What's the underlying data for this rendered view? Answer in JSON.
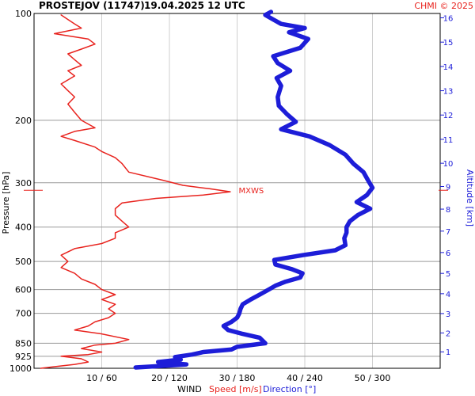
{
  "header": {
    "station": "PROSTEJOV (11747)",
    "datetime": "19.04.2025 12 UTC",
    "copyright": "CHMI © 2025"
  },
  "chart_data": {
    "type": "line",
    "title": "PROSTEJOV (11747)    19.04.2025 12 UTC",
    "ylabel": "Pressure [hPa]",
    "y2label": "Altitude [km]",
    "xlabel": "WIND",
    "xlabel_speed": "Speed [m/s]",
    "xlabel_direction": "Direction [°]",
    "y_scale": "log",
    "ylim": [
      1000,
      100
    ],
    "y_ticks": [
      100,
      200,
      300,
      400,
      500,
      600,
      700,
      850,
      925,
      1000
    ],
    "x_ticks": [
      "10 / 60",
      "20 / 120",
      "30 / 180",
      "40 / 240",
      "50 / 300"
    ],
    "speed_range": [
      0,
      60
    ],
    "direction_range": [
      0,
      360
    ],
    "altitude_ticks": [
      1,
      2,
      3,
      4,
      5,
      6,
      7,
      8,
      9,
      10,
      11,
      12,
      13,
      14,
      15,
      16
    ],
    "max_wind_label": "MXWS",
    "max_wind": {
      "pressure": 315,
      "speed": 30
    },
    "colors": {
      "speed": "#e8231e",
      "direction": "#1d1dd8",
      "grid": "#9a9a9a"
    },
    "series": [
      {
        "name": "Speed [m/s]",
        "color": "#e8231e",
        "points": [
          [
            1000,
            1
          ],
          [
            990,
            3
          ],
          [
            975,
            6
          ],
          [
            960,
            8
          ],
          [
            940,
            7
          ],
          [
            925,
            4
          ],
          [
            915,
            8
          ],
          [
            900,
            10
          ],
          [
            880,
            7
          ],
          [
            860,
            9
          ],
          [
            850,
            12
          ],
          [
            830,
            14
          ],
          [
            800,
            10
          ],
          [
            780,
            6
          ],
          [
            760,
            8
          ],
          [
            740,
            9
          ],
          [
            720,
            11
          ],
          [
            700,
            12
          ],
          [
            680,
            11
          ],
          [
            660,
            12
          ],
          [
            640,
            10
          ],
          [
            620,
            12
          ],
          [
            600,
            10
          ],
          [
            580,
            9
          ],
          [
            560,
            7
          ],
          [
            540,
            6
          ],
          [
            520,
            4
          ],
          [
            500,
            5
          ],
          [
            480,
            4
          ],
          [
            460,
            6
          ],
          [
            445,
            10
          ],
          [
            430,
            12
          ],
          [
            415,
            12
          ],
          [
            400,
            14
          ],
          [
            385,
            13
          ],
          [
            370,
            12
          ],
          [
            355,
            12
          ],
          [
            342,
            13
          ],
          [
            332,
            18
          ],
          [
            325,
            25
          ],
          [
            318,
            29
          ],
          [
            312,
            26
          ],
          [
            305,
            22
          ],
          [
            295,
            19
          ],
          [
            280,
            14
          ],
          [
            265,
            13
          ],
          [
            255,
            12
          ],
          [
            245,
            10
          ],
          [
            238,
            9
          ],
          [
            228,
            6
          ],
          [
            222,
            4
          ],
          [
            215,
            6
          ],
          [
            210,
            9
          ],
          [
            200,
            7
          ],
          [
            190,
            6
          ],
          [
            180,
            5
          ],
          [
            172,
            6
          ],
          [
            165,
            5
          ],
          [
            158,
            4
          ],
          [
            150,
            6
          ],
          [
            145,
            5
          ],
          [
            140,
            7
          ],
          [
            135,
            6
          ],
          [
            130,
            5
          ],
          [
            126,
            7
          ],
          [
            122,
            9
          ],
          [
            118,
            8
          ],
          [
            114,
            3
          ],
          [
            110,
            7
          ],
          [
            107,
            6
          ],
          [
            104,
            5
          ],
          [
            101,
            4
          ]
        ]
      },
      {
        "name": "Direction [°]",
        "color": "#1d1dd8",
        "points": [
          [
            995,
            90
          ],
          [
            985,
            112
          ],
          [
            975,
            135
          ],
          [
            960,
            110
          ],
          [
            945,
            130
          ],
          [
            930,
            125
          ],
          [
            915,
            140
          ],
          [
            900,
            150
          ],
          [
            885,
            175
          ],
          [
            870,
            180
          ],
          [
            850,
            205
          ],
          [
            820,
            200
          ],
          [
            800,
            185
          ],
          [
            780,
            172
          ],
          [
            760,
            168
          ],
          [
            740,
            175
          ],
          [
            720,
            180
          ],
          [
            700,
            182
          ],
          [
            680,
            183
          ],
          [
            660,
            185
          ],
          [
            640,
            192
          ],
          [
            620,
            200
          ],
          [
            600,
            208
          ],
          [
            585,
            214
          ],
          [
            570,
            223
          ],
          [
            555,
            236
          ],
          [
            540,
            238
          ],
          [
            525,
            228
          ],
          [
            510,
            214
          ],
          [
            495,
            213
          ],
          [
            480,
            238
          ],
          [
            465,
            267
          ],
          [
            450,
            276
          ],
          [
            430,
            275
          ],
          [
            415,
            277
          ],
          [
            400,
            277
          ],
          [
            385,
            280
          ],
          [
            370,
            287
          ],
          [
            355,
            298
          ],
          [
            340,
            286
          ],
          [
            325,
            295
          ],
          [
            310,
            300
          ],
          [
            295,
            296
          ],
          [
            280,
            292
          ],
          [
            265,
            283
          ],
          [
            250,
            276
          ],
          [
            235,
            262
          ],
          [
            222,
            244
          ],
          [
            212,
            219
          ],
          [
            202,
            232
          ],
          [
            192,
            224
          ],
          [
            182,
            217
          ],
          [
            172,
            216
          ],
          [
            160,
            219
          ],
          [
            152,
            215
          ],
          [
            145,
            227
          ],
          [
            138,
            216
          ],
          [
            132,
            212
          ],
          [
            125,
            236
          ],
          [
            118,
            243
          ],
          [
            113,
            226
          ],
          [
            110,
            240
          ],
          [
            107,
            219
          ],
          [
            104,
            212
          ],
          [
            101,
            205
          ],
          [
            99,
            210
          ]
        ]
      }
    ]
  }
}
